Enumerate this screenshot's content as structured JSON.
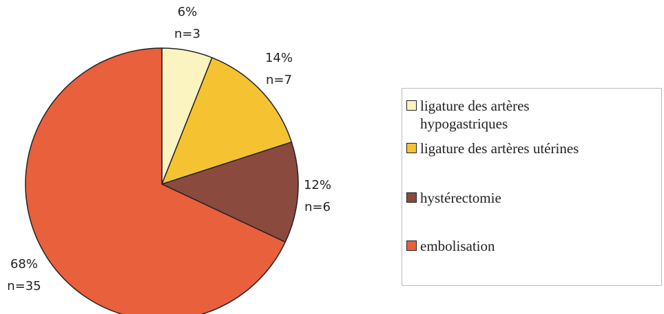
{
  "chart_data": {
    "type": "pie",
    "categories": [
      "ligature des artères hypogastriques",
      "ligature des artères utérines",
      "hystérectomie",
      "embolisation"
    ],
    "values": [
      6,
      14,
      12,
      68
    ],
    "value_labels": [
      "6%",
      "14%",
      "12%",
      "68%"
    ],
    "count_labels": [
      "n=3",
      "n=7",
      "n=6",
      "n=35"
    ],
    "colors": [
      "#fbf3c0",
      "#f5c232",
      "#8a4a3e",
      "#e8603c"
    ]
  }
}
